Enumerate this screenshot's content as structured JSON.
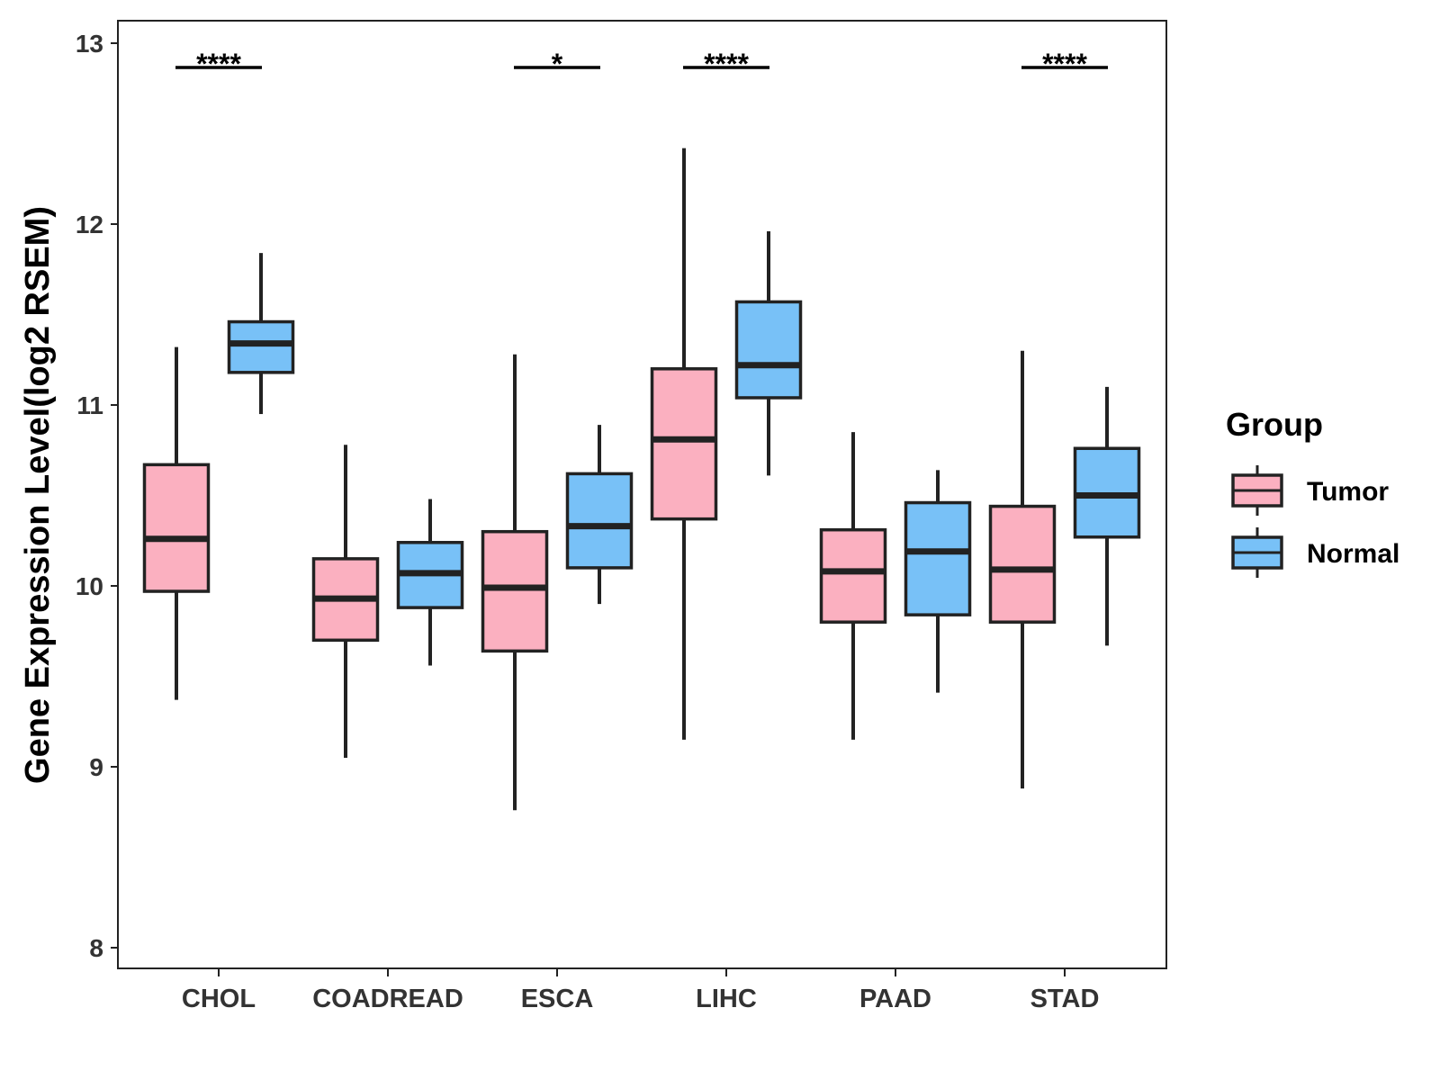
{
  "chart_data": {
    "type": "box",
    "ylabel": "Gene Expression Level(log2 RSEM)",
    "xlabel": "",
    "ylim": [
      8,
      13
    ],
    "yticks": [
      8,
      9,
      10,
      11,
      12,
      13
    ],
    "categories": [
      "CHOL",
      "COADREAD",
      "ESCA",
      "LIHC",
      "PAAD",
      "STAD"
    ],
    "legend": {
      "title": "Group",
      "placement": "right",
      "entries": [
        "Tumor",
        "Normal"
      ]
    },
    "colors": {
      "Tumor": "#fbb0c0",
      "Normal": "#78c1f7",
      "stroke": "#222222"
    },
    "series": [
      {
        "name": "Tumor",
        "boxes": [
          {
            "category": "CHOL",
            "min": 9.37,
            "q1": 9.97,
            "median": 10.26,
            "q3": 10.67,
            "max": 11.32
          },
          {
            "category": "COADREAD",
            "min": 9.05,
            "q1": 9.7,
            "median": 9.93,
            "q3": 10.15,
            "max": 10.78
          },
          {
            "category": "ESCA",
            "min": 8.76,
            "q1": 9.64,
            "median": 9.99,
            "q3": 10.3,
            "max": 11.28
          },
          {
            "category": "LIHC",
            "min": 9.15,
            "q1": 10.37,
            "median": 10.81,
            "q3": 11.2,
            "max": 12.42
          },
          {
            "category": "PAAD",
            "min": 9.15,
            "q1": 9.8,
            "median": 10.08,
            "q3": 10.31,
            "max": 10.85
          },
          {
            "category": "STAD",
            "min": 8.88,
            "q1": 9.8,
            "median": 10.09,
            "q3": 10.44,
            "max": 11.3
          }
        ]
      },
      {
        "name": "Normal",
        "boxes": [
          {
            "category": "CHOL",
            "min": 10.95,
            "q1": 11.18,
            "median": 11.34,
            "q3": 11.46,
            "max": 11.84
          },
          {
            "category": "COADREAD",
            "min": 9.56,
            "q1": 9.88,
            "median": 10.07,
            "q3": 10.24,
            "max": 10.48
          },
          {
            "category": "ESCA",
            "min": 9.9,
            "q1": 10.1,
            "median": 10.33,
            "q3": 10.62,
            "max": 10.89
          },
          {
            "category": "LIHC",
            "min": 10.61,
            "q1": 11.04,
            "median": 11.22,
            "q3": 11.57,
            "max": 11.96
          },
          {
            "category": "PAAD",
            "min": 9.41,
            "q1": 9.84,
            "median": 10.19,
            "q3": 10.46,
            "max": 10.64
          },
          {
            "category": "STAD",
            "min": 9.67,
            "q1": 10.27,
            "median": 10.5,
            "q3": 10.76,
            "max": 11.1
          }
        ]
      }
    ],
    "significance": [
      {
        "category": "CHOL",
        "label": "****"
      },
      {
        "category": "ESCA",
        "label": "*"
      },
      {
        "category": "LIHC",
        "label": "****"
      },
      {
        "category": "STAD",
        "label": "****"
      }
    ]
  }
}
